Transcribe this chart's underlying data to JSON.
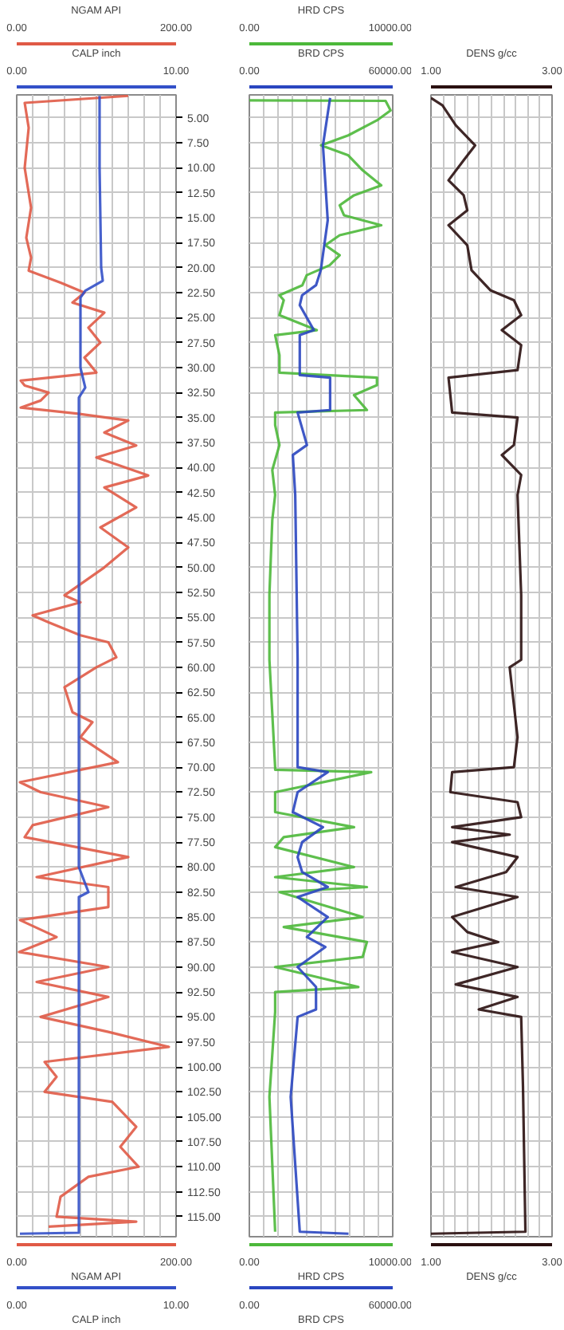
{
  "chart_data": [
    {
      "type": "line",
      "xlabel": "NGAM API",
      "x2label": "CALP inch",
      "xlim": [
        0,
        200
      ],
      "x2lim": [
        0,
        10
      ],
      "xticks": [
        {
          "value": 0,
          "label": "0.00"
        },
        {
          "value": 20,
          "label": null
        },
        {
          "value": 40,
          "label": null
        },
        {
          "value": 60,
          "label": null
        },
        {
          "value": 80,
          "label": null
        },
        {
          "value": 100,
          "label": null
        },
        {
          "value": 120,
          "label": null
        },
        {
          "value": 140,
          "label": null
        },
        {
          "value": 160,
          "label": null
        },
        {
          "value": 180,
          "label": null
        },
        {
          "value": 200,
          "label": "200.00"
        }
      ],
      "x2ticks": [
        {
          "value": 0,
          "label": "0.00"
        },
        {
          "value": 10,
          "label": "10.00"
        }
      ],
      "ylim": [
        117,
        2.7
      ],
      "yticks": [
        {
          "value": 5,
          "label": "5.00"
        },
        {
          "value": 7.5,
          "label": "7.50"
        },
        {
          "value": 10,
          "label": "10.00"
        },
        {
          "value": 12.5,
          "label": "12.50"
        },
        {
          "value": 15,
          "label": "15.00"
        },
        {
          "value": 17.5,
          "label": "17.50"
        },
        {
          "value": 20,
          "label": "20.00"
        },
        {
          "value": 22.5,
          "label": "22.50"
        },
        {
          "value": 25,
          "label": "25.00"
        },
        {
          "value": 27.5,
          "label": "27.50"
        },
        {
          "value": 30,
          "label": "30.00"
        },
        {
          "value": 32.5,
          "label": "32.50"
        },
        {
          "value": 35,
          "label": "35.00"
        },
        {
          "value": 37.5,
          "label": "37.50"
        },
        {
          "value": 40,
          "label": "40.00"
        },
        {
          "value": 42.5,
          "label": "42.50"
        },
        {
          "value": 45,
          "label": "45.00"
        },
        {
          "value": 47.5,
          "label": "47.50"
        },
        {
          "value": 50,
          "label": "50.00"
        },
        {
          "value": 52.5,
          "label": "52.50"
        },
        {
          "value": 55,
          "label": "55.00"
        },
        {
          "value": 57.5,
          "label": "57.50"
        },
        {
          "value": 60,
          "label": "60.00"
        },
        {
          "value": 62.5,
          "label": "62.50"
        },
        {
          "value": 65,
          "label": "65.00"
        },
        {
          "value": 67.5,
          "label": "67.50"
        },
        {
          "value": 70,
          "label": "70.00"
        },
        {
          "value": 72.5,
          "label": "72.50"
        },
        {
          "value": 75,
          "label": "75.00"
        },
        {
          "value": 77.5,
          "label": "77.50"
        },
        {
          "value": 80,
          "label": "80.00"
        },
        {
          "value": 82.5,
          "label": "82.50"
        },
        {
          "value": 85,
          "label": "85.00"
        },
        {
          "value": 87.5,
          "label": "87.50"
        },
        {
          "value": 90,
          "label": "90.00"
        },
        {
          "value": 92.5,
          "label": "92.50"
        },
        {
          "value": 95,
          "label": "95.00"
        },
        {
          "value": 97.5,
          "label": "97.50"
        },
        {
          "value": 100,
          "label": "100.00"
        },
        {
          "value": 102.5,
          "label": "102.50"
        },
        {
          "value": 105,
          "label": "105.00"
        },
        {
          "value": 107.5,
          "label": "107.50"
        },
        {
          "value": 110,
          "label": "110.00"
        },
        {
          "value": 112.5,
          "label": "112.50"
        },
        {
          "value": 115,
          "label": "115.00"
        }
      ],
      "grid": true,
      "series": [
        {
          "color": "#e05a46",
          "x": [
            140,
            10,
            15,
            10,
            18,
            12,
            18,
            15,
            55,
            85,
            70,
            110,
            90,
            105,
            85,
            100,
            5,
            10,
            40,
            30,
            5,
            75,
            140,
            110,
            150,
            100,
            165,
            110,
            150,
            105,
            140,
            110,
            60,
            80,
            20,
            40,
            80,
            115,
            125,
            100,
            60,
            70,
            95,
            80,
            127,
            4,
            30,
            115,
            20,
            10,
            140,
            25,
            115,
            115,
            4,
            50,
            3,
            115,
            25,
            115,
            30,
            115,
            191,
            35,
            50,
            35,
            120,
            150,
            130,
            153,
            90,
            55,
            50,
            150,
            40
          ],
          "values": [
            2.8,
            3.5,
            6,
            10,
            14,
            17,
            19,
            20.3,
            21.5,
            22.5,
            23.5,
            24.5,
            26,
            27.5,
            29,
            30.5,
            31.3,
            31.8,
            32.5,
            33.3,
            34,
            34.6,
            35.3,
            36.5,
            37.8,
            39,
            40.8,
            42,
            44,
            46,
            48,
            50,
            52.8,
            53.5,
            54.8,
            55.5,
            56.8,
            57.5,
            59,
            60,
            62,
            64.5,
            65.5,
            67,
            69.5,
            71.5,
            72.5,
            74,
            75.8,
            77,
            79,
            81,
            82,
            84,
            85.3,
            87,
            88.5,
            90,
            91.5,
            93,
            95,
            96.5,
            98,
            99.5,
            101,
            102.5,
            103.5,
            106,
            108,
            110,
            111,
            113,
            115,
            115.5,
            116
          ]
        },
        {
          "color": "#3350c8",
          "axis": "x2",
          "x": [
            5.2,
            5.2,
            5.3,
            5.4,
            4.3,
            4.0,
            4.0,
            4.3,
            3.9,
            3.9,
            3.9,
            4.5,
            3.9,
            3.9,
            3.9,
            0.2
          ],
          "values": [
            2.8,
            10,
            20,
            21.3,
            22.3,
            23,
            30,
            32,
            33,
            60,
            80,
            82.5,
            83,
            100,
            116.6,
            116.7
          ]
        }
      ]
    },
    {
      "type": "line",
      "xlabel": "HRD CPS",
      "x2label": "BRD CPS",
      "xlim": [
        0,
        10000
      ],
      "x2lim": [
        0,
        60000
      ],
      "xticks": [
        {
          "value": 0,
          "label": "0.00"
        },
        {
          "value": 1000,
          "label": null
        },
        {
          "value": 2000,
          "label": null
        },
        {
          "value": 3000,
          "label": null
        },
        {
          "value": 4000,
          "label": null
        },
        {
          "value": 5000,
          "label": null
        },
        {
          "value": 6000,
          "label": null
        },
        {
          "value": 7000,
          "label": null
        },
        {
          "value": 8000,
          "label": null
        },
        {
          "value": 9000,
          "label": null
        },
        {
          "value": 10000,
          "label": "10000.00"
        }
      ],
      "x2ticks": [
        {
          "value": 0,
          "label": "0.00"
        },
        {
          "value": 60000,
          "label": "60000.00"
        }
      ],
      "ylim": [
        117,
        2.7
      ],
      "yticks": [
        {
          "value": 5,
          "label": null
        },
        {
          "value": 7.5,
          "label": null
        },
        {
          "value": 10,
          "label": null
        },
        {
          "value": 12.5,
          "label": null
        },
        {
          "value": 15,
          "label": null
        },
        {
          "value": 17.5,
          "label": null
        },
        {
          "value": 20,
          "label": null
        },
        {
          "value": 22.5,
          "label": null
        },
        {
          "value": 25,
          "label": null
        },
        {
          "value": 27.5,
          "label": null
        },
        {
          "value": 30,
          "label": null
        },
        {
          "value": 32.5,
          "label": null
        },
        {
          "value": 35,
          "label": null
        },
        {
          "value": 37.5,
          "label": null
        },
        {
          "value": 40,
          "label": null
        },
        {
          "value": 42.5,
          "label": null
        },
        {
          "value": 45,
          "label": null
        },
        {
          "value": 47.5,
          "label": null
        },
        {
          "value": 50,
          "label": null
        },
        {
          "value": 52.5,
          "label": null
        },
        {
          "value": 55,
          "label": null
        },
        {
          "value": 57.5,
          "label": null
        },
        {
          "value": 60,
          "label": null
        },
        {
          "value": 62.5,
          "label": null
        },
        {
          "value": 65,
          "label": null
        },
        {
          "value": 67.5,
          "label": null
        },
        {
          "value": 70,
          "label": null
        },
        {
          "value": 72.5,
          "label": null
        },
        {
          "value": 75,
          "label": null
        },
        {
          "value": 77.5,
          "label": null
        },
        {
          "value": 80,
          "label": null
        },
        {
          "value": 82.5,
          "label": null
        },
        {
          "value": 85,
          "label": null
        },
        {
          "value": 87.5,
          "label": null
        },
        {
          "value": 90,
          "label": null
        },
        {
          "value": 92.5,
          "label": null
        },
        {
          "value": 95,
          "label": null
        },
        {
          "value": 97.5,
          "label": null
        },
        {
          "value": 100,
          "label": null
        },
        {
          "value": 102.5,
          "label": null
        },
        {
          "value": 105,
          "label": null
        },
        {
          "value": 107.5,
          "label": null
        },
        {
          "value": 110,
          "label": null
        },
        {
          "value": 112.5,
          "label": null
        },
        {
          "value": 115,
          "label": null
        }
      ],
      "tick_labels": "x",
      "grid": true,
      "series": [
        {
          "color": "#4cb83a",
          "x": [
            0,
            9500,
            9850,
            8900,
            6900,
            5000,
            6900,
            7900,
            9200,
            7300,
            6300,
            6600,
            9200,
            6300,
            5300,
            6300,
            5600,
            4000,
            3700,
            2100,
            2400,
            2100,
            4700,
            1800,
            2100,
            2100,
            8900,
            8900,
            7300,
            8200,
            1800,
            1800,
            2100,
            1600,
            1800,
            1600,
            1400,
            1400,
            1800,
            1800,
            8500,
            1800,
            1800,
            7300,
            2400,
            1800,
            7300,
            1800,
            8200,
            2100,
            7900,
            2400,
            8200,
            7900,
            1800,
            7600,
            1800,
            1800,
            1400,
            1800
          ],
          "values": [
            3.25,
            3.3,
            4.25,
            5.25,
            6.75,
            7.75,
            8.75,
            10.25,
            11.75,
            12.75,
            13.75,
            14.75,
            15.75,
            16.75,
            17.75,
            18.75,
            19.75,
            20.75,
            21.75,
            22.75,
            23.25,
            24.75,
            26.25,
            26.75,
            28.75,
            30.5,
            31,
            31.75,
            32.75,
            34.25,
            34.5,
            35.75,
            37.75,
            40.25,
            42.75,
            45.25,
            52.75,
            59.25,
            70,
            70.25,
            70.5,
            72.5,
            74.5,
            76,
            77,
            78,
            80,
            81,
            82,
            82.5,
            85,
            86,
            87.5,
            89,
            90,
            92,
            92.5,
            94.5,
            103,
            116.5
          ]
        },
        {
          "color": "#2a46c0",
          "axis": "x2",
          "x": [
            33800,
            30800,
            32800,
            29900,
            27900,
            22100,
            21100,
            27000,
            21100,
            21100,
            33800,
            33800,
            20200,
            24100,
            18200,
            19200,
            20200,
            20200,
            32800,
            20200,
            18200,
            30800,
            22100,
            20200,
            22100,
            32800,
            20200,
            32800,
            24100,
            31800,
            20200,
            27900,
            27900,
            20200,
            17300,
            21100,
            41500
          ],
          "values": [
            3,
            7.75,
            15.25,
            20.25,
            21.75,
            22.75,
            23.75,
            26.25,
            26.75,
            30.75,
            31,
            34.25,
            34.5,
            37.75,
            38.75,
            42.75,
            59.25,
            70,
            70.5,
            72.5,
            74.5,
            76,
            77.5,
            79,
            80.5,
            82,
            83,
            85,
            87,
            88,
            90,
            92,
            94.25,
            95,
            103,
            116.5,
            116.7
          ]
        }
      ]
    },
    {
      "type": "line",
      "xlabel": "DENS g/cc",
      "xlim": [
        1,
        3
      ],
      "xticks": [
        {
          "value": 1,
          "label": "1.00"
        },
        {
          "value": 1.2,
          "label": null
        },
        {
          "value": 1.4,
          "label": null
        },
        {
          "value": 1.6,
          "label": null
        },
        {
          "value": 1.8,
          "label": null
        },
        {
          "value": 2,
          "label": null
        },
        {
          "value": 2.2,
          "label": null
        },
        {
          "value": 2.4,
          "label": null
        },
        {
          "value": 2.6,
          "label": null
        },
        {
          "value": 2.8,
          "label": null
        },
        {
          "value": 3,
          "label": "3.00"
        }
      ],
      "ylim": [
        117,
        2.7
      ],
      "yticks": [
        {
          "value": 5,
          "label": null
        },
        {
          "value": 7.5,
          "label": null
        },
        {
          "value": 10,
          "label": null
        },
        {
          "value": 12.5,
          "label": null
        },
        {
          "value": 15,
          "label": null
        },
        {
          "value": 17.5,
          "label": null
        },
        {
          "value": 20,
          "label": null
        },
        {
          "value": 22.5,
          "label": null
        },
        {
          "value": 25,
          "label": null
        },
        {
          "value": 27.5,
          "label": null
        },
        {
          "value": 30,
          "label": null
        },
        {
          "value": 32.5,
          "label": null
        },
        {
          "value": 35,
          "label": null
        },
        {
          "value": 37.5,
          "label": null
        },
        {
          "value": 40,
          "label": null
        },
        {
          "value": 42.5,
          "label": null
        },
        {
          "value": 45,
          "label": null
        },
        {
          "value": 47.5,
          "label": null
        },
        {
          "value": 50,
          "label": null
        },
        {
          "value": 52.5,
          "label": null
        },
        {
          "value": 55,
          "label": null
        },
        {
          "value": 57.5,
          "label": null
        },
        {
          "value": 60,
          "label": null
        },
        {
          "value": 62.5,
          "label": null
        },
        {
          "value": 65,
          "label": null
        },
        {
          "value": 67.5,
          "label": null
        },
        {
          "value": 70,
          "label": null
        },
        {
          "value": 72.5,
          "label": null
        },
        {
          "value": 75,
          "label": null
        },
        {
          "value": 77.5,
          "label": null
        },
        {
          "value": 80,
          "label": null
        },
        {
          "value": 82.5,
          "label": null
        },
        {
          "value": 85,
          "label": null
        },
        {
          "value": 87.5,
          "label": null
        },
        {
          "value": 90,
          "label": null
        },
        {
          "value": 92.5,
          "label": null
        },
        {
          "value": 95,
          "label": null
        },
        {
          "value": 97.5,
          "label": null
        },
        {
          "value": 100,
          "label": null
        },
        {
          "value": 102.5,
          "label": null
        },
        {
          "value": 105,
          "label": null
        },
        {
          "value": 107.5,
          "label": null
        },
        {
          "value": 110,
          "label": null
        },
        {
          "value": 112.5,
          "label": null
        },
        {
          "value": 115,
          "label": null
        }
      ],
      "tick_labels": "x",
      "grid": true,
      "series": [
        {
          "color": "#2a1010",
          "x": [
            1.0,
            1.19,
            1.41,
            1.73,
            1.54,
            1.29,
            1.54,
            1.6,
            1.29,
            1.6,
            1.67,
            1.98,
            2.37,
            2.49,
            2.17,
            2.49,
            2.43,
            1.29,
            1.32,
            1.35,
            2.43,
            2.37,
            2.17,
            2.49,
            2.43,
            2.46,
            2.49,
            2.49,
            2.3,
            2.43,
            2.37,
            1.35,
            1.32,
            2.43,
            2.49,
            1.35,
            2.3,
            1.35,
            2.43,
            2.24,
            1.41,
            2.43,
            1.35,
            1.6,
            2.11,
            1.35,
            2.43,
            1.41,
            2.43,
            1.79,
            2.49,
            2.52,
            2.56,
            1.0
          ],
          "values": [
            3,
            3.75,
            5.75,
            7.75,
            9.25,
            11.25,
            12.75,
            14.25,
            15.75,
            17.75,
            20.25,
            22.25,
            23.25,
            24.75,
            26.25,
            27.75,
            30.25,
            31,
            32.75,
            34.5,
            35,
            37.75,
            38.75,
            40.75,
            42.75,
            47.75,
            52.75,
            59.25,
            60,
            67,
            70,
            70.5,
            72.5,
            73.5,
            75,
            76,
            76.75,
            77.5,
            79,
            80.5,
            82,
            83,
            85,
            86.5,
            87.5,
            88.5,
            90,
            91.75,
            93,
            94.25,
            95,
            102,
            116.5,
            116.7
          ]
        }
      ]
    }
  ]
}
